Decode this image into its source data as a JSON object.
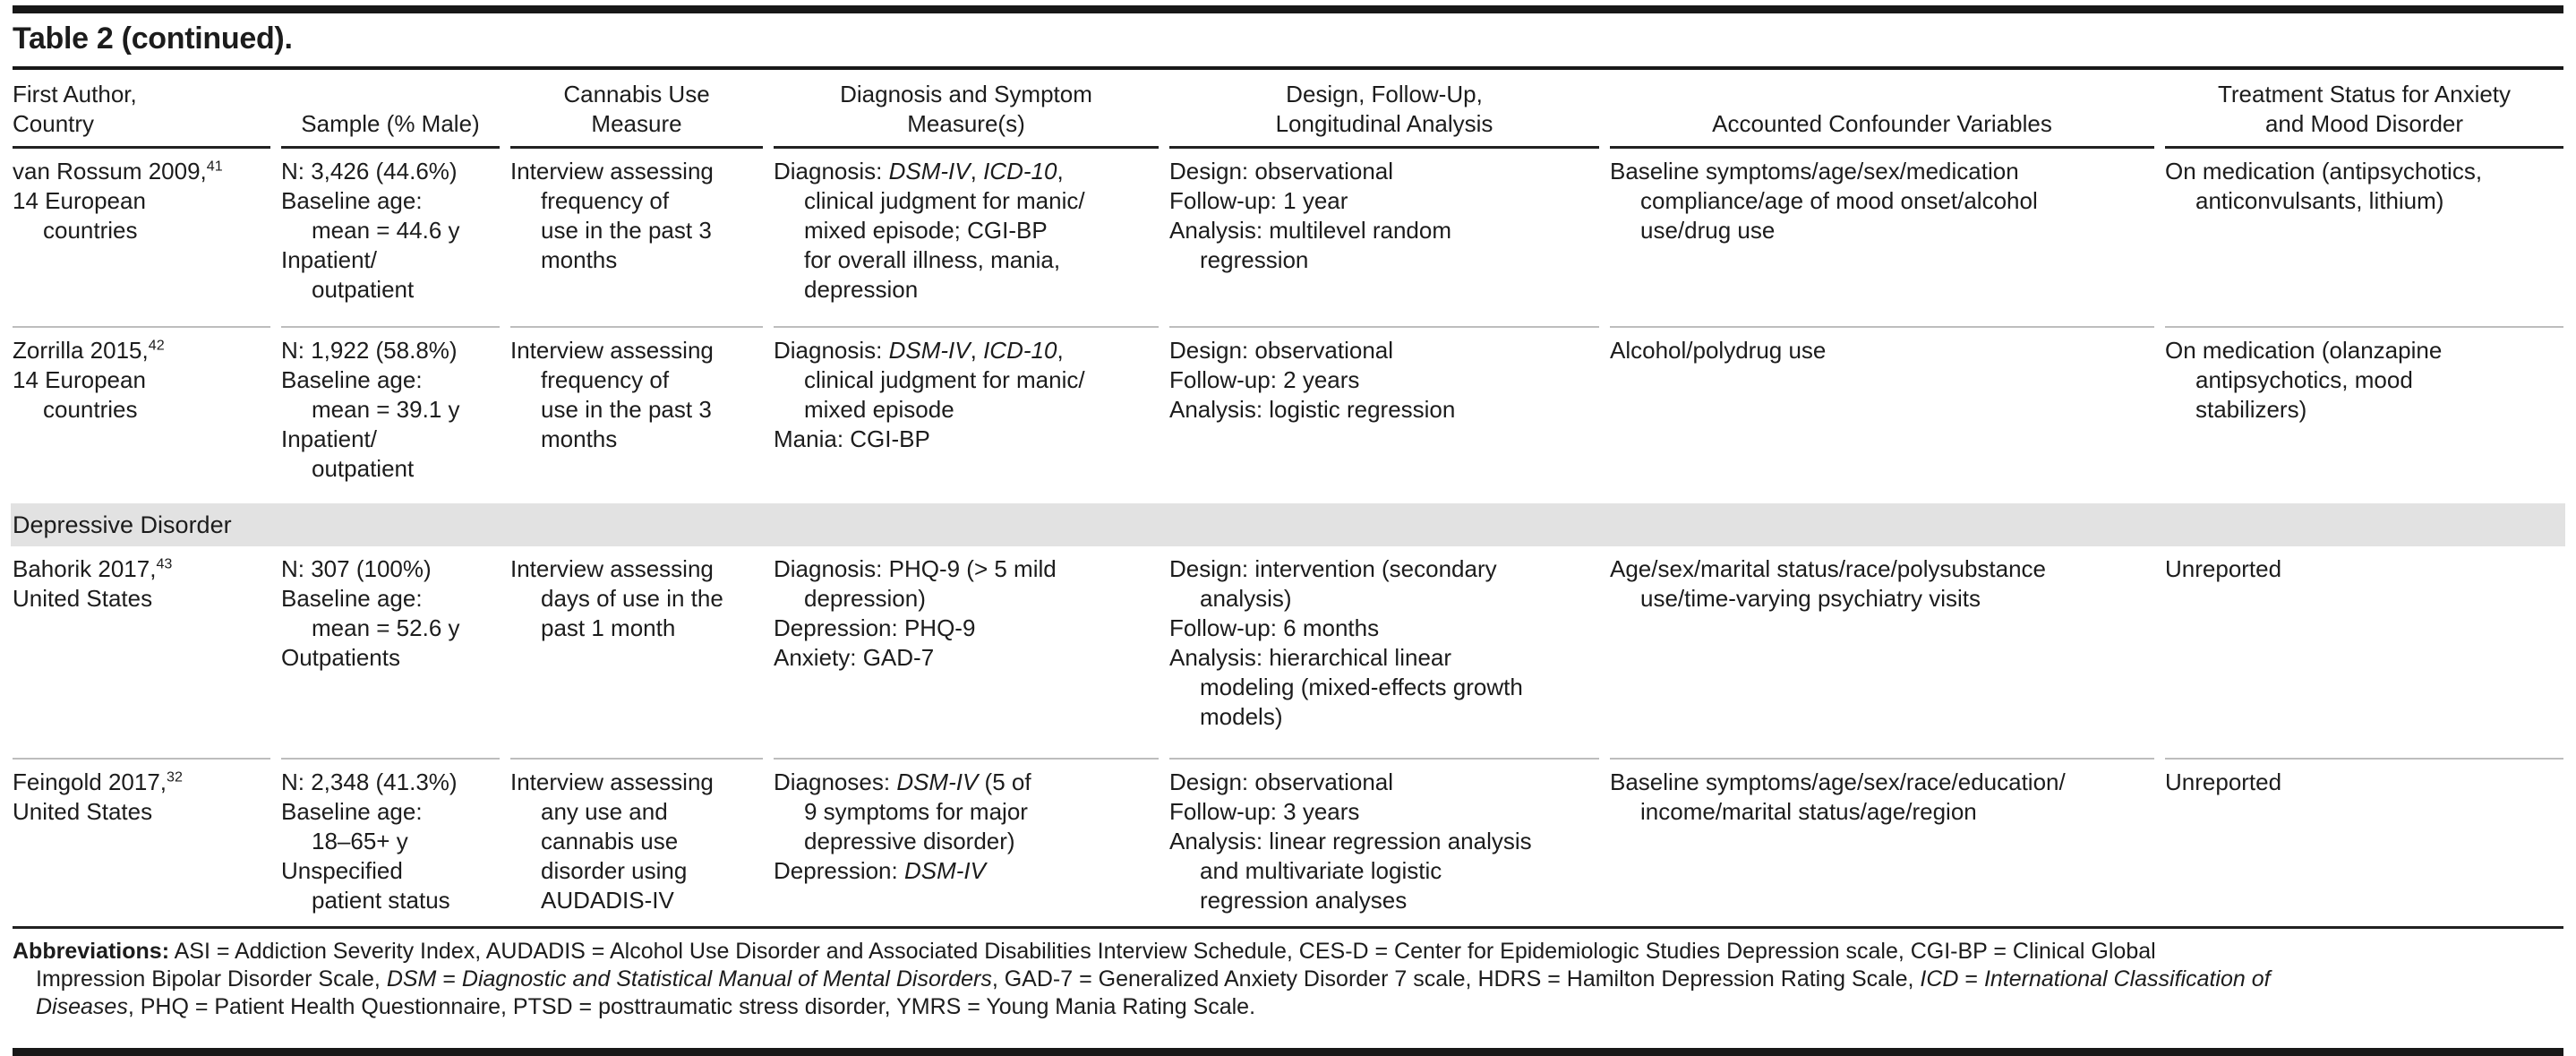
{
  "title": "Table 2 (continued).",
  "headers": {
    "first_author_country": [
      "First Author,",
      "Country"
    ],
    "sample": [
      "Sample (% Male)"
    ],
    "cannabis_use_measure": [
      "Cannabis Use",
      "Measure"
    ],
    "diagnosis_symptom_measures": [
      "Diagnosis and Symptom",
      "Measure(s)"
    ],
    "design_followup_analysis": [
      "Design, Follow-Up,",
      "Longitudinal Analysis"
    ],
    "confounder_variables": [
      "Accounted Confounder Variables"
    ],
    "treatment_status": [
      "Treatment Status for Anxiety",
      "and Mood Disorder"
    ]
  },
  "sections": {
    "depressive_disorder": "Depressive Disorder"
  },
  "rows": [
    {
      "first_author_country": [
        "van Rossum 2009,^41^",
        "14 European",
        ">countries"
      ],
      "sample": [
        "N: 3,426 (44.6%)",
        "Baseline age:",
        ">mean = 44.6 y",
        "Inpatient/",
        ">outpatient"
      ],
      "cannabis_use_measure": [
        "Interview assessing",
        ">frequency of",
        ">use in the past 3",
        ">months"
      ],
      "diagnosis_symptom_measures": [
        "Diagnosis: *DSM-IV*, *ICD-10*,",
        ">clinical judgment for manic/",
        ">mixed episode; CGI-BP",
        ">for overall illness, mania,",
        ">depression"
      ],
      "design_followup_analysis": [
        "Design: observational",
        "Follow-up: 1 year",
        "Analysis: multilevel random",
        ">regression"
      ],
      "confounder_variables": [
        "Baseline symptoms/age/sex/medication",
        ">compliance/age of mood onset/alcohol",
        ">use/drug use"
      ],
      "treatment_status": [
        "On medication (antipsychotics,",
        ">anticonvulsants, lithium)"
      ]
    },
    {
      "first_author_country": [
        "Zorrilla 2015,^42^",
        "14 European",
        ">countries"
      ],
      "sample": [
        "N: 1,922 (58.8%)",
        "Baseline age:",
        ">mean = 39.1 y",
        "Inpatient/",
        ">outpatient"
      ],
      "cannabis_use_measure": [
        "Interview assessing",
        ">frequency of",
        ">use in the past 3",
        ">months"
      ],
      "diagnosis_symptom_measures": [
        "Diagnosis: *DSM-IV*, *ICD-10*,",
        ">clinical judgment for manic/",
        ">mixed episode",
        "Mania: CGI-BP"
      ],
      "design_followup_analysis": [
        "Design: observational",
        "Follow-up: 2 years",
        "Analysis: logistic regression"
      ],
      "confounder_variables": [
        "Alcohol/polydrug use"
      ],
      "treatment_status": [
        "On medication (olanzapine",
        ">antipsychotics, mood",
        ">stabilizers)"
      ]
    },
    {
      "first_author_country": [
        "Bahorik 2017,^43^",
        "United States"
      ],
      "sample": [
        "N: 307 (100%)",
        "Baseline age:",
        ">mean = 52.6 y",
        "Outpatients"
      ],
      "cannabis_use_measure": [
        "Interview assessing",
        ">days of use in the",
        ">past 1 month"
      ],
      "diagnosis_symptom_measures": [
        "Diagnosis: PHQ-9 (> 5 mild",
        ">depression)",
        "Depression: PHQ-9",
        "Anxiety: GAD-7"
      ],
      "design_followup_analysis": [
        "Design: intervention (secondary",
        ">analysis)",
        "Follow-up: 6 months",
        "Analysis: hierarchical linear",
        ">modeling (mixed-effects growth",
        ">models)"
      ],
      "confounder_variables": [
        "Age/sex/marital status/race/polysubstance",
        ">use/time-varying psychiatry visits"
      ],
      "treatment_status": [
        "Unreported"
      ]
    },
    {
      "first_author_country": [
        "Feingold 2017,^32^",
        "United States"
      ],
      "sample": [
        "N: 2,348 (41.3%)",
        "Baseline age:",
        ">18–65+ y",
        "Unspecified",
        ">patient status"
      ],
      "cannabis_use_measure": [
        "Interview assessing",
        ">any use and",
        ">cannabis use",
        ">disorder using",
        ">AUDADIS-IV"
      ],
      "diagnosis_symptom_measures": [
        "Diagnoses: *DSM-IV* (5 of",
        ">9 symptoms for major",
        ">depressive disorder)",
        "Depression: *DSM-IV*"
      ],
      "design_followup_analysis": [
        "Design: observational",
        "Follow-up: 3 years",
        "Analysis: linear regression analysis",
        ">and multivariate logistic",
        ">regression analyses"
      ],
      "confounder_variables": [
        "Baseline symptoms/age/sex/race/education/",
        ">income/marital status/age/region"
      ],
      "treatment_status": [
        "Unreported"
      ]
    }
  ],
  "footnote_lines": [
    "**Abbreviations:** ASI = Addiction Severity Index, AUDADIS = Alcohol Use Disorder and Associated Disabilities Interview Schedule, CES-D = Center for Epidemiologic Studies Depression scale, CGI-BP = Clinical Global",
    ">Impression Bipolar Disorder Scale, *DSM* = *Diagnostic and Statistical Manual of Mental Disorders*, GAD-7 = Generalized Anxiety Disorder 7 scale, HDRS = Hamilton Depression Rating Scale, *ICD* = *International Classification of*",
    ">*Diseases*, PHQ = Patient Health Questionnaire, PTSD = posttraumatic stress disorder, YMRS = Young Mania Rating Scale."
  ]
}
